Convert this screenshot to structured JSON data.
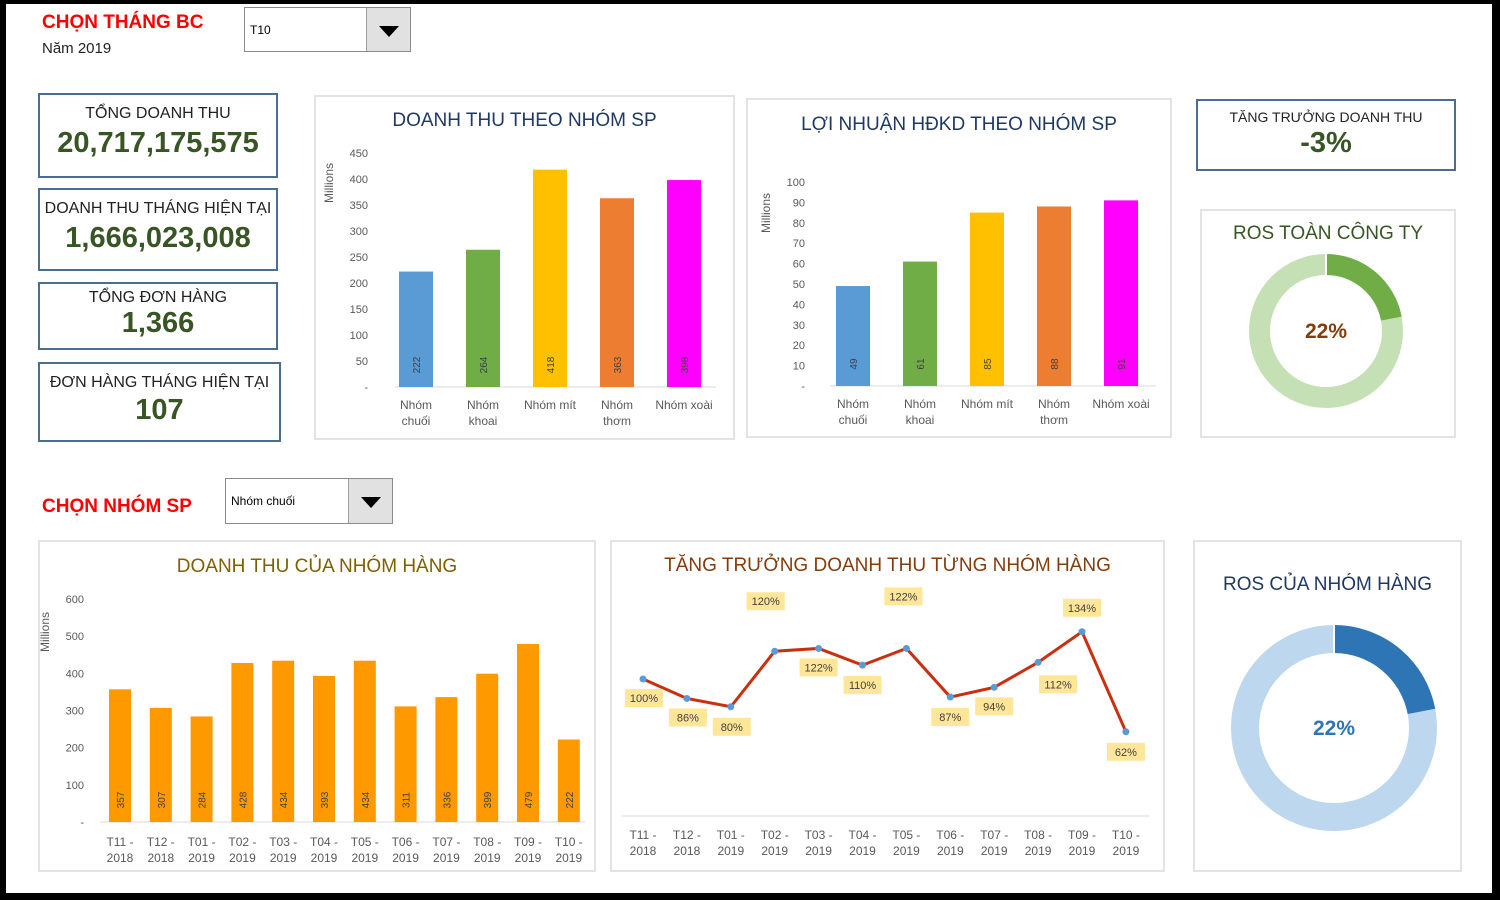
{
  "header": {
    "month_title": "CHỌN THÁNG BC",
    "year_label": "Năm 2019",
    "month_select": "T10"
  },
  "kpis": [
    {
      "label": "TỔNG DOANH THU",
      "value": "20,717,175,575"
    },
    {
      "label": "DOANH THU THÁNG HIỆN TẠI",
      "value": "1,666,023,008"
    },
    {
      "label": "TỔNG ĐƠN HÀNG",
      "value": "1,366"
    },
    {
      "label": "ĐƠN HÀNG THÁNG HIỆN TẠI",
      "value": "107"
    }
  ],
  "growth": {
    "label": "TĂNG TRƯỞNG DOANH THU",
    "value": "-3%"
  },
  "group_selector": {
    "title": "CHỌN NHÓM SP",
    "value": "Nhóm chuối"
  },
  "ros_company": {
    "title": "ROS TOÀN CÔNG TY",
    "value": "22%",
    "fraction": 0.22,
    "colors": [
      "#70ad47",
      "#c5e0b4"
    ]
  },
  "ros_group": {
    "title": "ROS CỦA NHÓM HÀNG",
    "value": "22%",
    "fraction": 0.22,
    "colors": [
      "#2e75b6",
      "#bdd7ee"
    ]
  },
  "chart_data": [
    {
      "type": "bar",
      "title": "DOANH THU THEO NHÓM SP",
      "ylabel": "Millions",
      "ylim": [
        0,
        450
      ],
      "yticks": [
        "-",
        "50",
        "100",
        "150",
        "200",
        "250",
        "300",
        "350",
        "400",
        "450"
      ],
      "categories": [
        [
          "Nhóm",
          "chuối"
        ],
        [
          "Nhóm",
          "khoai"
        ],
        [
          "Nhóm mít"
        ],
        [
          "Nhóm",
          "thơm"
        ],
        [
          "Nhóm xoài"
        ]
      ],
      "values": [
        222,
        264,
        418,
        363,
        398
      ],
      "colors": [
        "#5b9bd5",
        "#70ad47",
        "#ffc000",
        "#ed7d31",
        "#ff00ff"
      ]
    },
    {
      "type": "bar",
      "title": "LỢI NHUẬN HĐKD THEO NHÓM SP",
      "ylabel": "Millions",
      "ylim": [
        0,
        100
      ],
      "yticks": [
        "-",
        "10",
        "20",
        "30",
        "40",
        "50",
        "60",
        "70",
        "80",
        "90",
        "100"
      ],
      "categories": [
        [
          "Nhóm",
          "chuối"
        ],
        [
          "Nhóm",
          "khoai"
        ],
        [
          "Nhóm mít"
        ],
        [
          "Nhóm",
          "thơm"
        ],
        [
          "Nhóm xoài"
        ]
      ],
      "values": [
        49,
        61,
        85,
        88,
        91
      ],
      "colors": [
        "#5b9bd5",
        "#70ad47",
        "#ffc000",
        "#ed7d31",
        "#ff00ff"
      ]
    },
    {
      "type": "bar",
      "title": "DOANH THU CỦA NHÓM HÀNG",
      "ylabel": "Millions",
      "ylim": [
        0,
        600
      ],
      "yticks": [
        "-",
        "100",
        "200",
        "300",
        "400",
        "500",
        "600"
      ],
      "categories": [
        [
          "T11 -",
          "2018"
        ],
        [
          "T12 -",
          "2018"
        ],
        [
          "T01 -",
          "2019"
        ],
        [
          "T02 -",
          "2019"
        ],
        [
          "T03 -",
          "2019"
        ],
        [
          "T04 -",
          "2019"
        ],
        [
          "T05 -",
          "2019"
        ],
        [
          "T06 -",
          "2019"
        ],
        [
          "T07 -",
          "2019"
        ],
        [
          "T08 -",
          "2019"
        ],
        [
          "T09 -",
          "2019"
        ],
        [
          "T10 -",
          "2019"
        ]
      ],
      "values": [
        357,
        307,
        284,
        428,
        434,
        393,
        434,
        311,
        336,
        399,
        479,
        222
      ],
      "colors": [
        "#ff9900"
      ]
    },
    {
      "type": "line",
      "title": "TĂNG TRƯỞNG DOANH THU TỪNG NHÓM HÀNG",
      "categories": [
        [
          "T11 -",
          "2018"
        ],
        [
          "T12 -",
          "2018"
        ],
        [
          "T01 -",
          "2019"
        ],
        [
          "T02 -",
          "2019"
        ],
        [
          "T03 -",
          "2019"
        ],
        [
          "T04 -",
          "2019"
        ],
        [
          "T05 -",
          "2019"
        ],
        [
          "T06 -",
          "2019"
        ],
        [
          "T07 -",
          "2019"
        ],
        [
          "T08 -",
          "2019"
        ],
        [
          "T09 -",
          "2019"
        ],
        [
          "T10 -",
          "2019"
        ]
      ],
      "values": [
        100,
        86,
        80,
        120,
        122,
        110,
        122,
        87,
        94,
        112,
        134,
        62
      ],
      "unit": "%",
      "colors": [
        "#c9300f",
        "#5b9bd5",
        "#ffe699"
      ]
    }
  ]
}
